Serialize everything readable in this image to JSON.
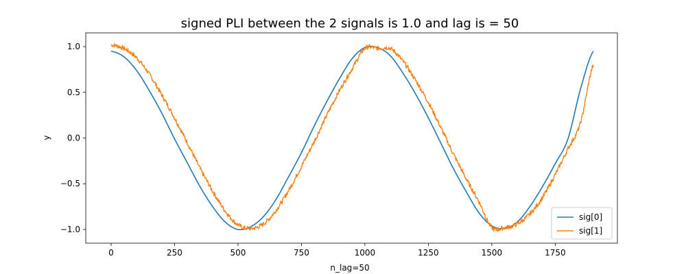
{
  "chart_data": {
    "type": "line",
    "title": "signed PLI between the 2 signals is 1.0 and lag is = 50",
    "xlabel": "n_lag=50",
    "ylabel": "y",
    "xlim": [
      -100,
      1995
    ],
    "ylim": [
      -1.15,
      1.15
    ],
    "xticks": [
      0,
      250,
      500,
      750,
      1000,
      1250,
      1500,
      1750
    ],
    "xtick_labels": [
      "0",
      "250",
      "500",
      "750",
      "1000",
      "1250",
      "1500",
      "1750"
    ],
    "yticks": [
      1.0,
      0.5,
      0.0,
      -0.5,
      -1.0
    ],
    "ytick_labels": [
      "1.0",
      "0.5",
      "0.0",
      "−0.5",
      "−1.0"
    ],
    "grid": false,
    "legend_position": "bottom-right",
    "series": [
      {
        "name": "sig[0]",
        "color": "#1f77b4",
        "x": [
          0,
          50,
          100,
          150,
          200,
          250,
          300,
          350,
          400,
          450,
          500,
          550,
          600,
          650,
          700,
          750,
          800,
          850,
          900,
          950,
          1000,
          1050,
          1100,
          1150,
          1200,
          1250,
          1300,
          1350,
          1400,
          1450,
          1500,
          1550,
          1600,
          1650,
          1700,
          1750,
          1800,
          1850,
          1900
        ],
        "y": [
          0.95,
          0.89,
          0.74,
          0.52,
          0.27,
          -0.01,
          -0.27,
          -0.53,
          -0.75,
          -0.92,
          -1.0,
          -0.97,
          -0.86,
          -0.67,
          -0.42,
          -0.16,
          0.13,
          0.4,
          0.65,
          0.87,
          0.99,
          0.99,
          0.9,
          0.71,
          0.48,
          0.22,
          -0.06,
          -0.34,
          -0.59,
          -0.82,
          -0.96,
          -0.99,
          -0.92,
          -0.75,
          -0.53,
          -0.28,
          -0.01,
          0.54,
          0.95
        ]
      },
      {
        "name": "sig[1]",
        "color": "#ff7f0e",
        "x": [
          0,
          50,
          100,
          150,
          200,
          250,
          300,
          350,
          400,
          450,
          500,
          550,
          600,
          650,
          700,
          750,
          800,
          850,
          900,
          950,
          1000,
          1050,
          1100,
          1150,
          1200,
          1250,
          1300,
          1350,
          1400,
          1450,
          1500,
          1550,
          1600,
          1650,
          1700,
          1750,
          1800,
          1850,
          1900
        ],
        "y": [
          1.02,
          0.98,
          0.88,
          0.7,
          0.47,
          0.22,
          -0.05,
          -0.33,
          -0.58,
          -0.8,
          -0.95,
          -0.99,
          -0.94,
          -0.79,
          -0.57,
          -0.31,
          -0.04,
          0.25,
          0.52,
          0.76,
          0.98,
          0.98,
          0.98,
          0.84,
          0.63,
          0.39,
          0.11,
          -0.18,
          -0.45,
          -0.7,
          -0.98,
          -0.98,
          -0.94,
          -0.83,
          -0.65,
          -0.4,
          -0.12,
          0.17,
          0.8
        ]
      }
    ]
  }
}
